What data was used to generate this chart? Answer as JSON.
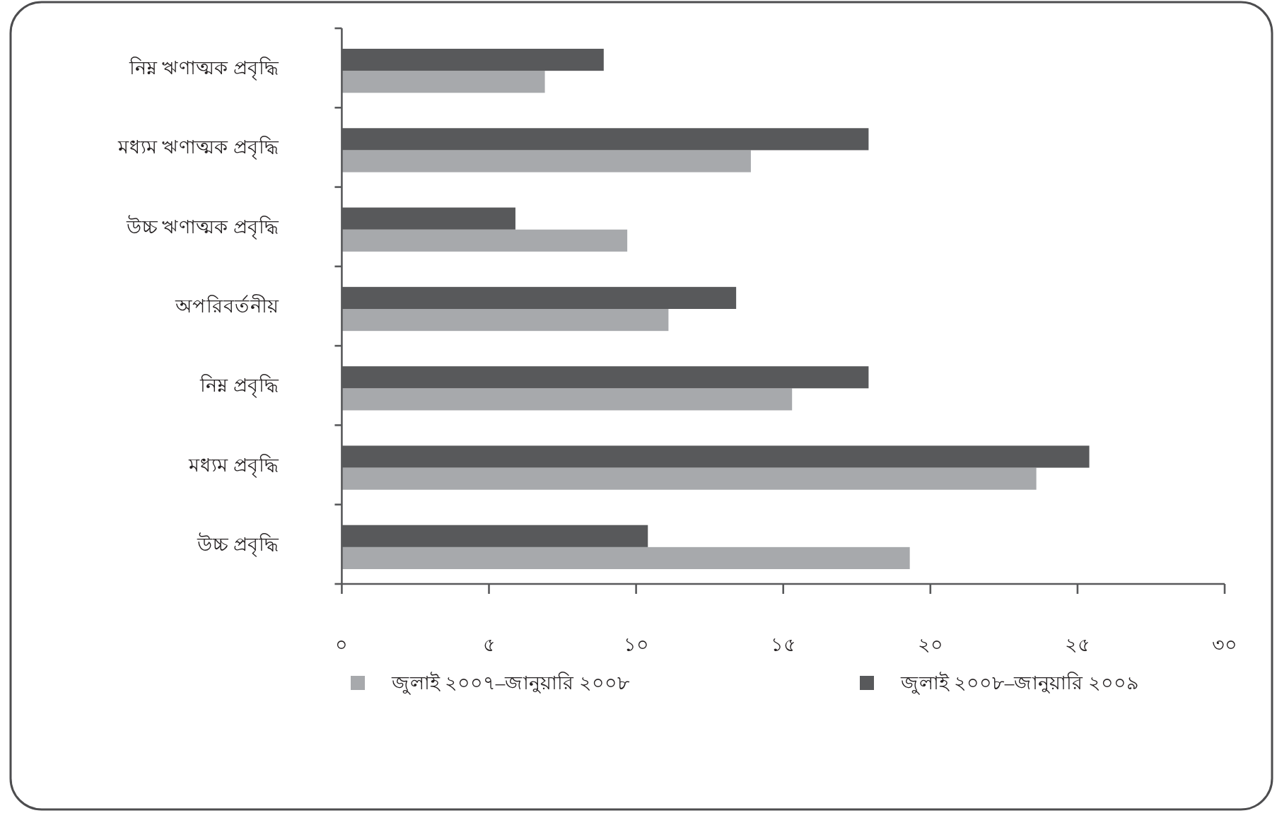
{
  "chart_data": {
    "type": "bar",
    "orientation": "horizontal",
    "categories": [
      "নিম্ন ঋণাত্মক প্রবৃদ্ধি",
      "মধ্যম ঋণাত্মক প্রবৃদ্ধি",
      "উচ্চ ঋণাত্মক প্রবৃদ্ধি",
      "অপরিবর্তনীয়",
      "নিম্ন প্রবৃদ্ধি",
      "মধ্যম প্রবৃদ্ধি",
      "উচ্চ প্রবৃদ্ধি"
    ],
    "series": [
      {
        "name": "জুলাই ২০০৭–জানুয়ারি ২০০৮",
        "color": "#a7a9ac",
        "values": [
          6.9,
          13.9,
          9.7,
          11.1,
          15.3,
          23.6,
          19.3
        ]
      },
      {
        "name": "জুলাই ২০০৮–জানুয়ারি ২০০৯",
        "color": "#58595b",
        "values": [
          8.9,
          17.9,
          5.9,
          13.4,
          17.9,
          25.4,
          10.4
        ]
      }
    ],
    "xlim": [
      0,
      30
    ],
    "xticks": [
      {
        "value": 0,
        "label": "০"
      },
      {
        "value": 5,
        "label": "৫"
      },
      {
        "value": 10,
        "label": "১০"
      },
      {
        "value": 15,
        "label": "১৫"
      },
      {
        "value": 20,
        "label": "২০"
      },
      {
        "value": 25,
        "label": "২৫"
      },
      {
        "value": 30,
        "label": "৩০"
      }
    ],
    "legend": "bottom"
  }
}
